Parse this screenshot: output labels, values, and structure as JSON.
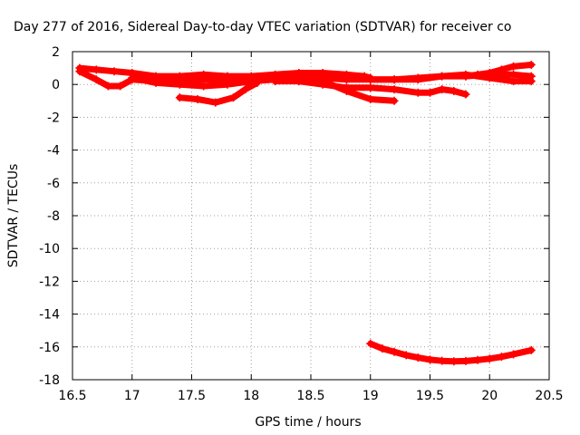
{
  "chart_data": {
    "type": "scatter",
    "title": "Day 277 of 2016, Sidereal Day-to-day VTEC variation (SDTVAR) for receiver co",
    "xlabel": "GPS time / hours",
    "ylabel": "SDTVAR / TECUs",
    "xlim": [
      16.5,
      20.5
    ],
    "ylim": [
      -18,
      2
    ],
    "x_ticks": [
      16.5,
      17,
      17.5,
      18,
      18.5,
      19,
      19.5,
      20,
      20.5
    ],
    "y_ticks": [
      -18,
      -16,
      -14,
      -12,
      -10,
      -8,
      -6,
      -4,
      -2,
      0,
      2
    ],
    "x_tick_labels": [
      "16.5",
      "17",
      "17.5",
      "18",
      "18.5",
      "19",
      "19.5",
      "20",
      "20.5"
    ],
    "y_tick_labels": [
      "-18",
      "-16",
      "-14",
      "-12",
      "-10",
      "-8",
      "-6",
      "-4",
      "-2",
      "0",
      "2"
    ],
    "grid": true,
    "marker": "+",
    "color": "#ff0000",
    "series": [
      {
        "x": [
          16.56,
          16.7,
          16.85,
          17.0,
          17.2,
          17.4,
          17.6,
          17.8,
          18.0,
          18.2,
          18.4,
          18.6,
          18.8,
          18.95,
          19.0
        ],
        "y": [
          1.0,
          0.9,
          0.8,
          0.7,
          0.5,
          0.5,
          0.6,
          0.5,
          0.5,
          0.6,
          0.7,
          0.7,
          0.6,
          0.5,
          0.4
        ]
      },
      {
        "x": [
          16.56,
          16.7,
          16.8,
          16.9,
          17.0,
          17.2,
          17.4,
          17.6,
          17.8,
          18.0,
          18.2,
          18.4,
          18.6,
          18.8,
          19.0,
          19.2,
          19.4,
          19.6,
          19.8,
          20.0,
          20.2,
          20.35
        ],
        "y": [
          0.8,
          0.3,
          -0.1,
          -0.1,
          0.3,
          0.2,
          0.2,
          0.3,
          0.3,
          0.3,
          0.4,
          0.5,
          0.4,
          0.3,
          0.3,
          0.3,
          0.4,
          0.5,
          0.5,
          0.6,
          0.6,
          0.5
        ]
      },
      {
        "x": [
          17.0,
          17.2,
          17.4,
          17.6,
          17.8,
          18.0,
          18.2,
          18.4,
          18.6,
          18.8,
          19.0,
          19.2
        ],
        "y": [
          0.4,
          0.1,
          0.0,
          -0.1,
          0.0,
          0.2,
          0.3,
          0.5,
          0.2,
          -0.4,
          -0.9,
          -1.0
        ]
      },
      {
        "x": [
          17.4,
          17.55,
          17.7,
          17.85,
          17.95,
          18.05
        ],
        "y": [
          -0.8,
          -0.9,
          -1.1,
          -0.8,
          -0.3,
          0.1
        ]
      },
      {
        "x": [
          18.2,
          18.4,
          18.6,
          18.8,
          19.0,
          19.2,
          19.4,
          19.5,
          19.6,
          19.7,
          19.8
        ],
        "y": [
          0.2,
          0.2,
          0.0,
          -0.2,
          -0.2,
          -0.3,
          -0.5,
          -0.5,
          -0.3,
          -0.4,
          -0.6
        ]
      },
      {
        "x": [
          19.0,
          19.2,
          19.4,
          19.6,
          19.8,
          20.0,
          20.2,
          20.35
        ],
        "y": [
          0.3,
          0.3,
          0.3,
          0.5,
          0.6,
          0.4,
          0.2,
          0.2
        ]
      },
      {
        "x": [
          19.8,
          19.9,
          20.0,
          20.1,
          20.2,
          20.35
        ],
        "y": [
          0.5,
          0.6,
          0.7,
          0.9,
          1.1,
          1.2
        ]
      },
      {
        "x": [
          19.0,
          19.1,
          19.2,
          19.3,
          19.4,
          19.5,
          19.6,
          19.7,
          19.8,
          19.9,
          20.0,
          20.1,
          20.2,
          20.35
        ],
        "y": [
          -15.8,
          -16.1,
          -16.3,
          -16.5,
          -16.65,
          -16.78,
          -16.85,
          -16.88,
          -16.86,
          -16.8,
          -16.72,
          -16.6,
          -16.45,
          -16.2
        ]
      }
    ]
  }
}
